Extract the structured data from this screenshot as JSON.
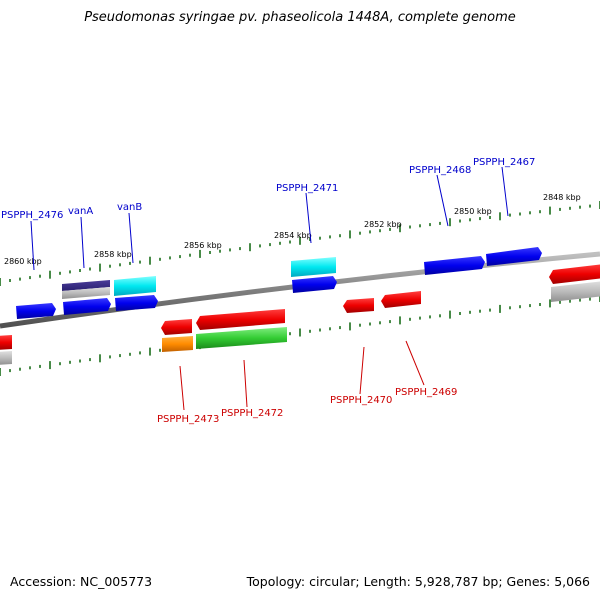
{
  "title": "Pseudomonas syringae pv. phaseolicola 1448A, complete genome",
  "footer": {
    "accession": "Accession: NC_005773",
    "summary": "Topology: circular; Length: 5,928,787 bp; Genes: 5,066"
  },
  "scale_labels": [
    "2860 kbp",
    "2858 kbp",
    "2856 kbp",
    "2854 kbp",
    "2852 kbp",
    "2850 kbp",
    "2848 kbp"
  ],
  "genes": [
    {
      "id": "PSPPH_2476",
      "strand": "forward",
      "color": "#0000cc"
    },
    {
      "id": "vanA",
      "strand": "forward",
      "color": "#0000cc"
    },
    {
      "id": "vanB",
      "strand": "forward",
      "color": "#0000cc"
    },
    {
      "id": "PSPPH_2471",
      "strand": "forward",
      "color": "#0000cc"
    },
    {
      "id": "PSPPH_2468",
      "strand": "forward",
      "color": "#0000cc"
    },
    {
      "id": "PSPPH_2467",
      "strand": "forward",
      "color": "#0000cc"
    },
    {
      "id": "PSPPH_2473",
      "strand": "reverse",
      "color": "#cc0000"
    },
    {
      "id": "PSPPH_2472",
      "strand": "reverse",
      "color": "#cc0000"
    },
    {
      "id": "PSPPH_2470",
      "strand": "reverse",
      "color": "#cc0000"
    },
    {
      "id": "PSPPH_2469",
      "strand": "reverse",
      "color": "#cc0000"
    }
  ],
  "colors": {
    "forward_label": "#0000cc",
    "reverse_label": "#cc0000",
    "tick": "#1a6e1a",
    "backbone": "#808080"
  }
}
